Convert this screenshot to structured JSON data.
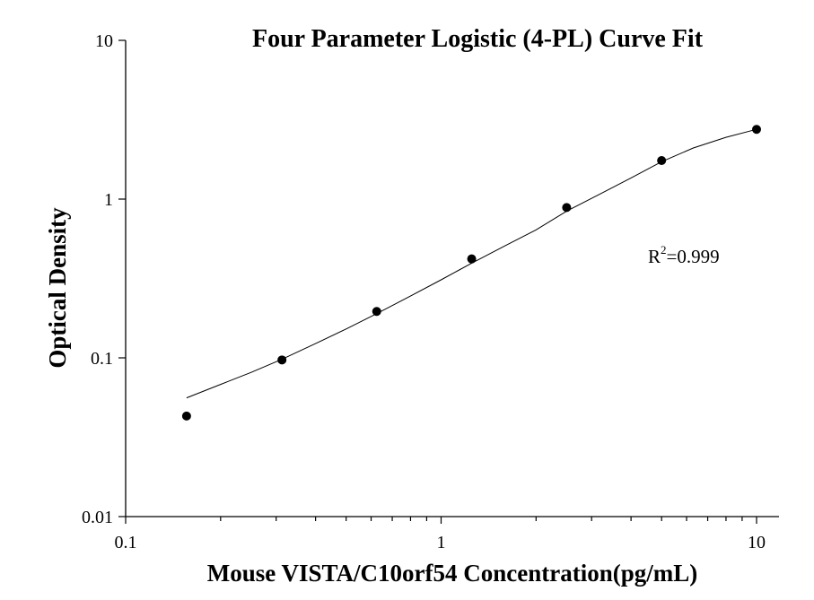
{
  "chart_data": {
    "type": "scatter",
    "title": "Four Parameter Logistic (4-PL) Curve Fit",
    "xlabel": "Mouse VISTA/C10orf54 Concentration(pg/mL)",
    "ylabel": "Optical Density",
    "x_scale": "log",
    "y_scale": "log",
    "xlim": [
      0.1,
      10
    ],
    "ylim": [
      0.01,
      10
    ],
    "x_ticks": [
      "0.1",
      "1",
      "10"
    ],
    "y_ticks": [
      "0.01",
      "0.1",
      "1",
      "10"
    ],
    "annotation": {
      "base": "R",
      "superscript": "2",
      "text": "=0.999"
    },
    "grid": false,
    "series": [
      {
        "x": [
          0.156,
          0.313,
          0.625,
          1.25,
          2.5,
          5,
          10
        ],
        "y": [
          0.043,
          0.097,
          0.196,
          0.42,
          0.885,
          1.75,
          2.75
        ]
      }
    ],
    "fit": {
      "model": "4PL",
      "curve_x": [
        0.156,
        0.2,
        0.25,
        0.313,
        0.4,
        0.5,
        0.625,
        0.8,
        1.0,
        1.25,
        1.6,
        2.0,
        2.5,
        3.2,
        4.0,
        5.0,
        6.3,
        8.0,
        10.0
      ],
      "curve_y": [
        0.056,
        0.068,
        0.081,
        0.098,
        0.123,
        0.152,
        0.19,
        0.245,
        0.31,
        0.395,
        0.51,
        0.64,
        0.84,
        1.08,
        1.36,
        1.72,
        2.1,
        2.45,
        2.75
      ]
    }
  }
}
